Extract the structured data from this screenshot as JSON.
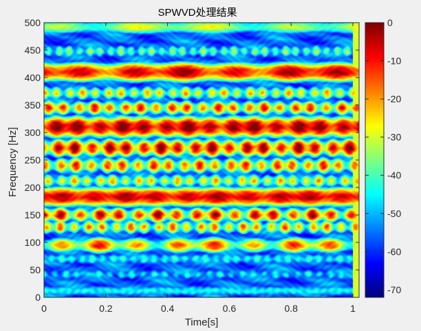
{
  "chart_data": {
    "type": "heatmap",
    "title": "SPWVD处理结果",
    "xlabel": "Time[s]",
    "ylabel": "Frequency [Hz]",
    "xlim": [
      0,
      1.02
    ],
    "ylim": [
      0,
      500
    ],
    "x_ticks": [
      0,
      0.2,
      0.4,
      0.6,
      0.8,
      1
    ],
    "x_tick_labels": [
      "0",
      "0.2",
      "0.4",
      "0.6",
      "0.8",
      "1"
    ],
    "y_ticks": [
      0,
      50,
      100,
      150,
      200,
      250,
      300,
      350,
      400,
      450,
      500
    ],
    "y_tick_labels": [
      "0",
      "50",
      "100",
      "150",
      "200",
      "250",
      "300",
      "350",
      "400",
      "450",
      "500"
    ],
    "colorbar": {
      "colormap": "jet",
      "range": [
        -72,
        0
      ],
      "ticks": [
        0,
        -10,
        -20,
        -30,
        -40,
        -50,
        -60,
        -70
      ],
      "tick_labels": [
        "0",
        "-10",
        "-20",
        "-30",
        "-40",
        "-50",
        "-60",
        "-70"
      ]
    },
    "bands": [
      {
        "frequency": 12,
        "width": 10,
        "level": -45,
        "modulation": 2,
        "cycles": 40
      },
      {
        "frequency": 42,
        "width": 10,
        "level": -50,
        "modulation": 6,
        "cycles": 28
      },
      {
        "frequency": 70,
        "width": 10,
        "level": -46,
        "modulation": 5,
        "cycles": 30
      },
      {
        "frequency": 95,
        "width": 11,
        "level": -26,
        "modulation": 12,
        "cycles": 8
      },
      {
        "frequency": 128,
        "width": 10,
        "level": -30,
        "modulation": 12,
        "cycles": 22
      },
      {
        "frequency": 150,
        "width": 10,
        "level": -20,
        "modulation": 14,
        "cycles": 16
      },
      {
        "frequency": 183,
        "width": 13,
        "level": -7,
        "modulation": 4,
        "cycles": 10
      },
      {
        "frequency": 212,
        "width": 10,
        "level": -33,
        "modulation": 10,
        "cycles": 24
      },
      {
        "frequency": 240,
        "width": 11,
        "level": -25,
        "modulation": 12,
        "cycles": 20
      },
      {
        "frequency": 272,
        "width": 12,
        "level": -14,
        "modulation": 12,
        "cycles": 18
      },
      {
        "frequency": 310,
        "width": 14,
        "level": -6,
        "modulation": 7,
        "cycles": 14
      },
      {
        "frequency": 345,
        "width": 10,
        "level": -24,
        "modulation": 12,
        "cycles": 20
      },
      {
        "frequency": 372,
        "width": 10,
        "level": -33,
        "modulation": 10,
        "cycles": 24
      },
      {
        "frequency": 410,
        "width": 13,
        "level": -10,
        "modulation": 7,
        "cycles": 6
      },
      {
        "frequency": 448,
        "width": 10,
        "level": -42,
        "modulation": 8,
        "cycles": 30
      },
      {
        "frequency": 492,
        "width": 11,
        "level": -34,
        "modulation": 6,
        "cycles": 4
      }
    ]
  }
}
